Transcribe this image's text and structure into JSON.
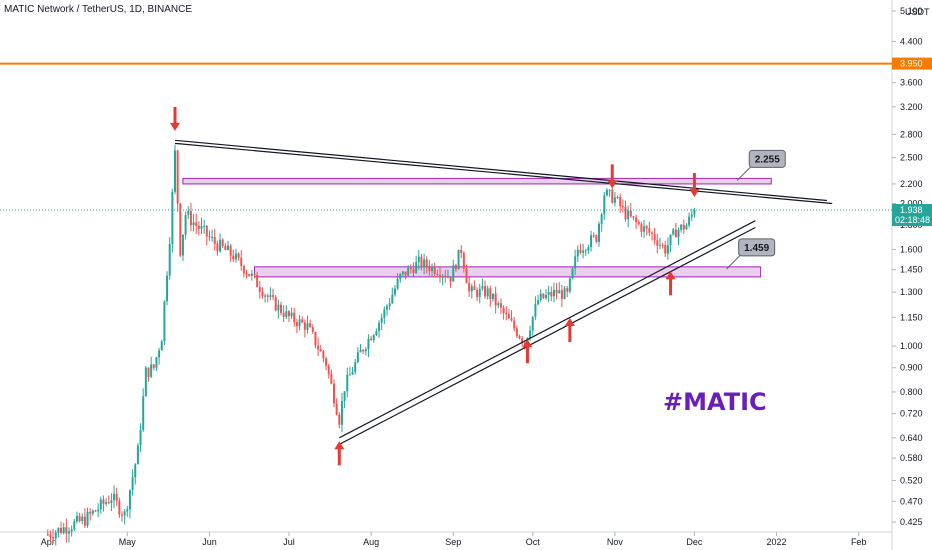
{
  "header": {
    "title": "MATIC Network / TetherUS, 1D, BINANCE"
  },
  "chart_data": {
    "type": "candlestick",
    "title": "MATIC Network / TetherUS, 1D, BINANCE",
    "currency": "USDT",
    "y_scale": "log",
    "y_ticks": [
      "5.100",
      "4.400",
      "3.950",
      "3.600",
      "3.200",
      "2.800",
      "2.500",
      "2.200",
      "2.000",
      "1.800",
      "1.600",
      "1.450",
      "1.300",
      "1.150",
      "1.000",
      "0.900",
      "0.800",
      "0.720",
      "0.640",
      "0.580",
      "0.520",
      "0.470",
      "0.425"
    ],
    "x_ticks": [
      "Apr",
      "May",
      "Jun",
      "Jul",
      "Aug",
      "Sep",
      "Oct",
      "Nov",
      "Dec",
      "2022",
      "Feb"
    ],
    "last_price": {
      "value": "1.938",
      "countdown": "02:18:48",
      "color": "#26a69a"
    },
    "resistance_line": {
      "value": 3.95,
      "label": "3.950",
      "color": "#f57c00"
    },
    "zones": [
      {
        "low": 2.2,
        "high": 2.26,
        "label": "2.255",
        "color": "#e1bee7"
      },
      {
        "low": 1.4,
        "high": 1.47,
        "label": "1.459",
        "color": "#e1bee7"
      }
    ],
    "price_path": [
      [
        "Apr 1",
        0.4
      ],
      [
        "Apr 15",
        0.43
      ],
      [
        "Apr 25",
        0.48
      ],
      [
        "Apr 30",
        0.44
      ],
      [
        "May 5",
        0.6
      ],
      [
        "May 8",
        0.88
      ],
      [
        "May 11",
        0.9
      ],
      [
        "May 14",
        1.05
      ],
      [
        "May 17",
        1.7
      ],
      [
        "May 19",
        2.55
      ],
      [
        "May 21",
        1.6
      ],
      [
        "May 23",
        1.9
      ],
      [
        "May 27",
        1.8
      ],
      [
        "Jun 3",
        1.65
      ],
      [
        "Jun 10",
        1.55
      ],
      [
        "Jun 17",
        1.4
      ],
      [
        "Jun 24",
        1.25
      ],
      [
        "Jul 1",
        1.15
      ],
      [
        "Jul 8",
        1.1
      ],
      [
        "Jul 15",
        0.92
      ],
      [
        "Jul 20",
        0.7
      ],
      [
        "Jul 22",
        0.82
      ],
      [
        "Jul 28",
        0.97
      ],
      [
        "Aug 5",
        1.15
      ],
      [
        "Aug 12",
        1.4
      ],
      [
        "Aug 19",
        1.5
      ],
      [
        "Aug 26",
        1.45
      ],
      [
        "Aug 31",
        1.4
      ],
      [
        "Sep 4",
        1.6
      ],
      [
        "Sep 7",
        1.3
      ],
      [
        "Sep 14",
        1.3
      ],
      [
        "Sep 21",
        1.15
      ],
      [
        "Sep 28",
        1.02
      ],
      [
        "Oct 3",
        1.25
      ],
      [
        "Oct 10",
        1.3
      ],
      [
        "Oct 14",
        1.28
      ],
      [
        "Oct 18",
        1.6
      ],
      [
        "Oct 25",
        1.7
      ],
      [
        "Oct 28",
        2.1
      ],
      [
        "Nov 1",
        2.05
      ],
      [
        "Nov 5",
        1.9
      ],
      [
        "Nov 10",
        1.8
      ],
      [
        "Nov 15",
        1.72
      ],
      [
        "Nov 20",
        1.6
      ],
      [
        "Nov 24",
        1.75
      ],
      [
        "Nov 28",
        1.8
      ],
      [
        "Dec 1",
        1.938
      ]
    ],
    "trendlines": [
      {
        "from": [
          "May 19",
          2.72
        ],
        "to": [
          "Jan 20",
          2.03
        ]
      },
      {
        "from": [
          "May 19",
          2.68
        ],
        "to": [
          "Jan 22",
          2.0
        ]
      },
      {
        "from": [
          "Jul 20",
          0.64
        ],
        "to": [
          "Dec 24",
          1.84
        ]
      },
      {
        "from": [
          "Jul 20",
          0.62
        ],
        "to": [
          "Dec 24",
          1.78
        ]
      }
    ],
    "arrows": [
      {
        "date": "May 19",
        "price": 3.2,
        "direction": "down"
      },
      {
        "date": "Oct 31",
        "price": 2.42,
        "direction": "down"
      },
      {
        "date": "Dec 1",
        "price": 2.32,
        "direction": "down"
      },
      {
        "date": "Jul 20",
        "price": 0.56,
        "direction": "up"
      },
      {
        "date": "Sep 29",
        "price": 0.92,
        "direction": "up"
      },
      {
        "date": "Oct 15",
        "price": 1.02,
        "direction": "up"
      },
      {
        "date": "Nov 22",
        "price": 1.28,
        "direction": "up"
      }
    ],
    "annotation": "#MATIC",
    "colors": {
      "up": "#26a69a",
      "down": "#ef5350",
      "arrow": "#e53935",
      "trendline": "#131722"
    }
  }
}
